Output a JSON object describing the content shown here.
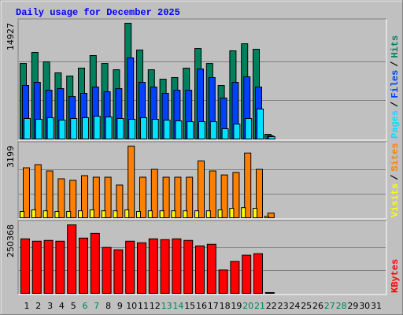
{
  "chart_data": {
    "type": "bar",
    "title": "Daily usage for December 2025",
    "categories": [
      "1",
      "2",
      "3",
      "4",
      "5",
      "6",
      "7",
      "8",
      "9",
      "10",
      "11",
      "12",
      "13",
      "14",
      "15",
      "16",
      "17",
      "18",
      "19",
      "20",
      "21",
      "22",
      "23",
      "24",
      "25",
      "26",
      "27",
      "28",
      "29",
      "30",
      "31"
    ],
    "category_colors": [
      "#000000",
      "#000000",
      "#000000",
      "#000000",
      "#000000",
      "#00805c",
      "#00805c",
      "#000000",
      "#000000",
      "#000000",
      "#000000",
      "#000000",
      "#00805c",
      "#00805c",
      "#000000",
      "#000000",
      "#000000",
      "#000000",
      "#000000",
      "#00805c",
      "#00805c",
      "#000000",
      "#000000",
      "#000000",
      "#000000",
      "#000000",
      "#00805c",
      "#00805c",
      "#000000",
      "#000000",
      "#000000"
    ],
    "legend_separator": "/",
    "panels": [
      {
        "ylim": [
          0,
          14927
        ],
        "yticks": [
          14927
        ],
        "series": [
          {
            "name": "Hits",
            "color": "#00805c",
            "values": [
              9740,
              11170,
              9950,
              8530,
              8120,
              9140,
              10760,
              9740,
              8930,
              14927,
              11470,
              8930,
              7710,
              7920,
              9140,
              11670,
              9740,
              6900,
              11370,
              12280,
              11570,
              610,
              null,
              null,
              null,
              null,
              null,
              null,
              null,
              null,
              null
            ]
          },
          {
            "name": "Files",
            "color": "#0040ff",
            "values": [
              6900,
              7310,
              6290,
              6500,
              5480,
              5890,
              6700,
              6090,
              6500,
              10460,
              7310,
              6700,
              5890,
              6290,
              6290,
              9030,
              7920,
              5280,
              7310,
              8020,
              6700,
              410,
              null,
              null,
              null,
              null,
              null,
              null,
              null,
              null,
              null
            ]
          },
          {
            "name": "Pages",
            "color": "#00e0ff",
            "values": [
              2640,
              2540,
              2740,
              2440,
              2640,
              2740,
              2940,
              2840,
              2640,
              2540,
              2740,
              2540,
              2440,
              2340,
              2230,
              2230,
              2230,
              1320,
              1930,
              2640,
              3860,
              300,
              null,
              null,
              null,
              null,
              null,
              null,
              null,
              null,
              null
            ]
          }
        ]
      },
      {
        "ylim": [
          0,
          3199
        ],
        "yticks": [
          3199
        ],
        "series": [
          {
            "name": "Sites",
            "color": "#ff8000",
            "values": [
              2230,
              2370,
              2090,
              1740,
              1670,
              1880,
              1810,
              1810,
              1460,
              3199,
              1810,
              2160,
              1810,
              1810,
              1810,
              2540,
              2090,
              1910,
              2020,
              2890,
              2160,
              210,
              null,
              null,
              null,
              null,
              null,
              null,
              null,
              null,
              null
            ]
          },
          {
            "name": "Visits",
            "color": "#ffff00",
            "values": [
              280,
              350,
              310,
              280,
              280,
              310,
              350,
              310,
              310,
              350,
              280,
              310,
              310,
              310,
              310,
              310,
              310,
              350,
              420,
              450,
              420,
              70,
              null,
              null,
              null,
              null,
              null,
              null,
              null,
              null,
              null
            ]
          }
        ]
      },
      {
        "ylim": [
          0,
          250368
        ],
        "yticks": [
          250368
        ],
        "series": [
          {
            "name": "KBytes",
            "color": "#ff0000",
            "values": [
              199200,
              190600,
              193500,
              190600,
              250368,
              202000,
              219100,
              167900,
              159300,
              190600,
              184900,
              199200,
              196300,
              199200,
              193500,
              173500,
              179200,
              85400,
              116600,
              139400,
              145100,
              2800,
              null,
              null,
              null,
              null,
              null,
              null,
              null,
              null,
              null
            ]
          }
        ]
      }
    ]
  }
}
